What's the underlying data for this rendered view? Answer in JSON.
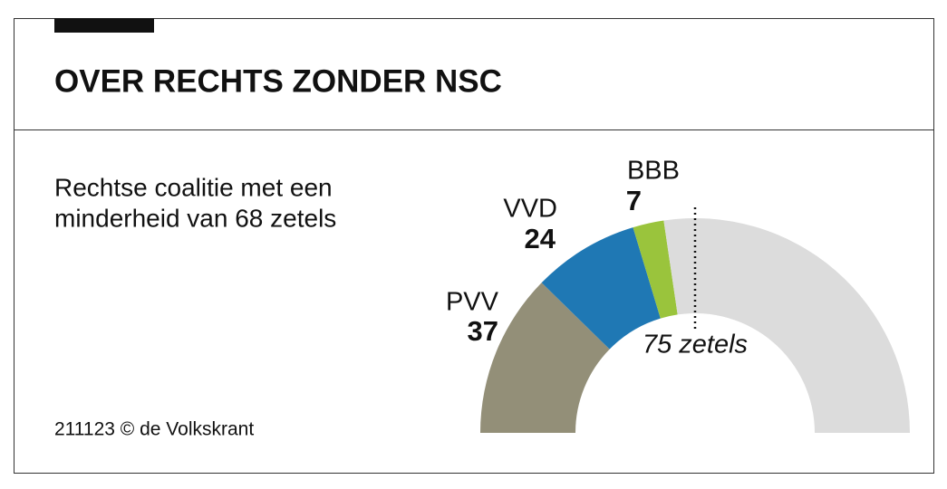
{
  "chart_data": {
    "type": "half-donut",
    "title": "OVER RECHTS ZONDER NSC",
    "subtitle": [
      "Rechtse coalitie met een",
      "minderheid van 68 zetels"
    ],
    "source": "211123 © de Volkskrant",
    "categories": [
      "PVV",
      "VVD",
      "BBB",
      null
    ],
    "values": [
      37,
      24,
      7,
      82
    ],
    "colors": [
      "#938f78",
      "#1f78b4",
      "#9ac43c",
      "#dcdcdc"
    ],
    "majority": {
      "value": 75,
      "label": "75 zetels"
    }
  }
}
